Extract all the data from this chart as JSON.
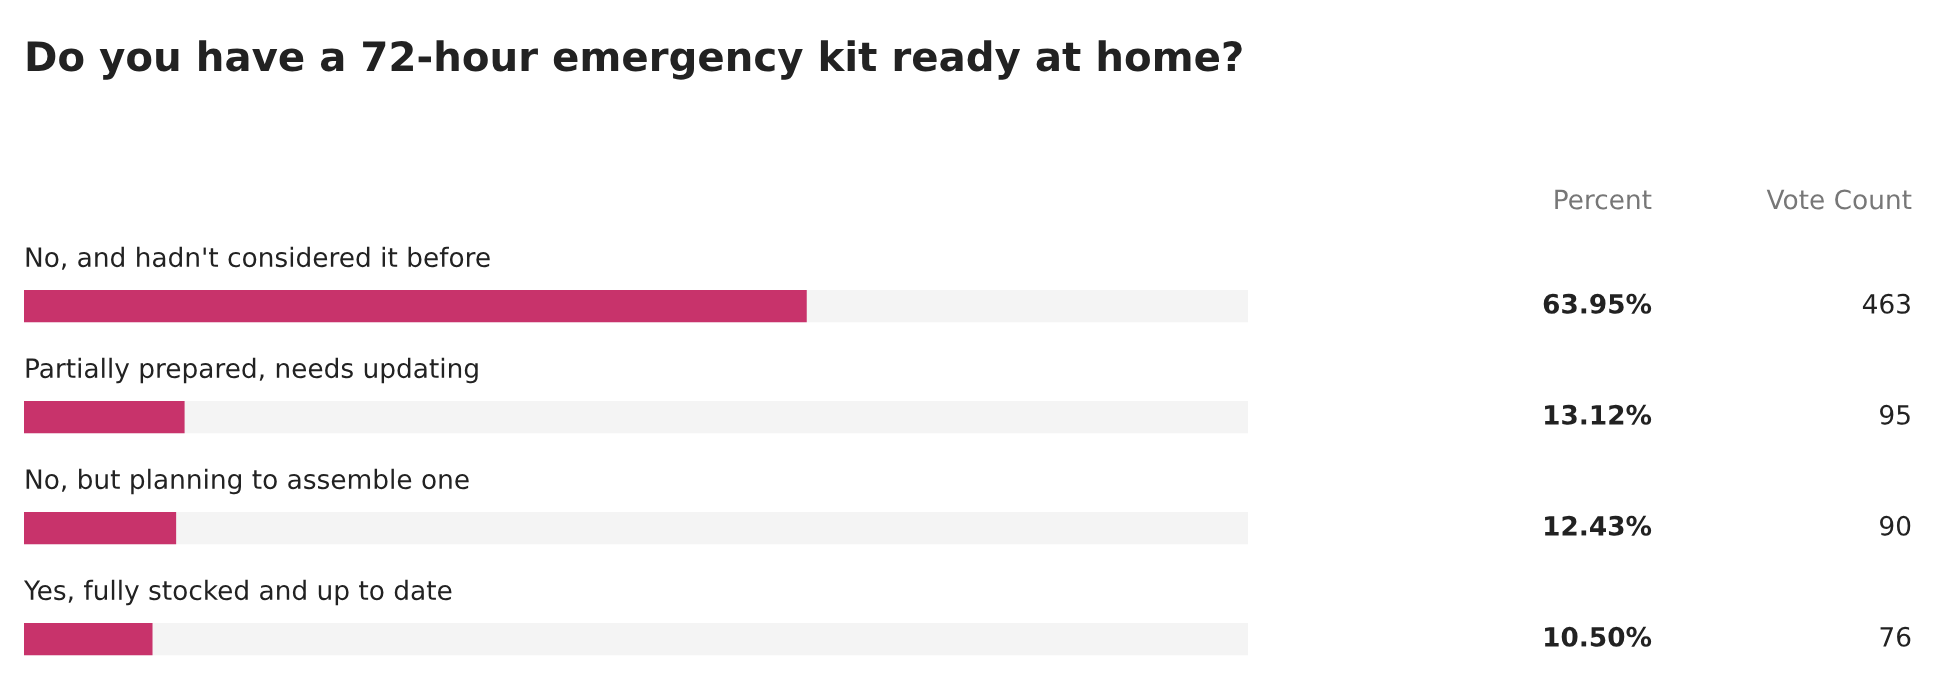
{
  "chart_data": [
    {
      "type": "bar",
      "orientation": "horizontal",
      "title": "Do you have a 72-hour emergency kit ready at home?",
      "categories": [
        "No, and hadn't considered it before",
        "Partially prepared, needs updating",
        "No, but planning to assemble one",
        "Yes, fully stocked and up to date"
      ],
      "series": [
        {
          "name": "Percent",
          "color": "#c8336b",
          "values": [
            63.95,
            13.12,
            12.43,
            10.5
          ],
          "value_labels": [
            "63.95%",
            "13.12%",
            "12.43%",
            "10.50%"
          ]
        }
      ],
      "data_labels": true,
      "xlim": [
        0,
        100
      ],
      "tick_labels": false
    },
    {
      "type": "other",
      "title": "Vote Count",
      "values": [
        463,
        95,
        90,
        76
      ],
      "data_labels": true
    }
  ]
}
